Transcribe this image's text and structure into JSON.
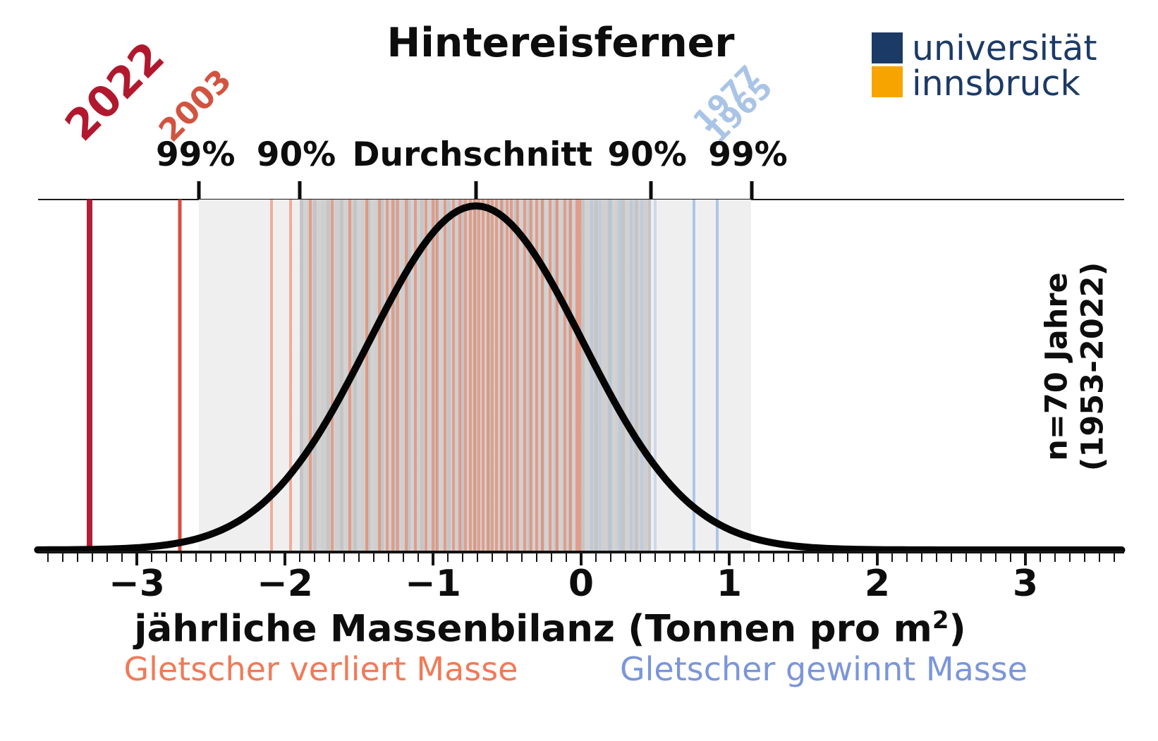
{
  "title": "Hintereisferner",
  "logo": {
    "line1": "universität",
    "line2": "innsbruck",
    "navy_color": "#1c3a66",
    "orange_color": "#f7a400"
  },
  "top_labels": [
    "99%",
    "90%",
    "Durchschnitt",
    "90%",
    "99%"
  ],
  "xlabel": {
    "main": "jährliche Massenbilanz (Tonnen pro m",
    "sup": "2",
    "end": ")"
  },
  "captions": {
    "loss": "Gletscher verliert Masse",
    "gain": "Gletscher gewinnt Masse",
    "loss_color": "#f07a58",
    "gain_color": "#7b96d8"
  },
  "side_note": {
    "line1": "n=70 Jahre",
    "line2": "(1953-2022)"
  },
  "year_highlights": [
    {
      "year": "2022",
      "value": -3.32,
      "line_color": "#ae1930",
      "label_color": "#b1182e"
    },
    {
      "year": "2003",
      "value": -2.71,
      "line_color": "#d7473a",
      "label_color": "#d15340"
    },
    {
      "year": "1977",
      "value": 0.76,
      "line_color": "#a9c4e6",
      "label_color": "#a9c4e6"
    },
    {
      "year": "1965",
      "value": 0.92,
      "line_color": "#a9c4e6",
      "label_color": "#a9c4e6"
    }
  ],
  "chart_data": {
    "type": "line",
    "subtype": "probability-density",
    "title": "Hintereisferner",
    "xlabel": "jährliche Massenbilanz (Tonnen pro m2)",
    "ylabel": "",
    "x_ticks": [
      -3,
      -2,
      -1,
      0,
      1,
      2,
      3
    ],
    "xlim": [
      -3.67,
      3.67
    ],
    "minor_tick_step": 0.1,
    "grid": false,
    "legend": false,
    "distribution": {
      "shape": "normal",
      "mean": -0.71,
      "std": 0.72,
      "n": 70,
      "period": "1953-2022"
    },
    "interval_90": [
      -1.9,
      0.47
    ],
    "interval_99": [
      -2.58,
      1.15
    ],
    "mass_loss_year_values": [
      -2.09,
      -1.96,
      -1.83,
      -1.68,
      -1.56,
      -1.45,
      -1.36,
      -1.31,
      -1.27,
      -1.24,
      -1.18,
      -1.12,
      -1.05,
      -1.0,
      -0.97,
      -0.92,
      -0.86,
      -0.82,
      -0.78,
      -0.75,
      -0.72,
      -0.69,
      -0.66,
      -0.63,
      -0.6,
      -0.57,
      -0.54,
      -0.5,
      -0.47,
      -0.43,
      -0.38,
      -0.34,
      -0.3,
      -0.26,
      -0.21,
      -0.16,
      -0.11,
      -0.07,
      -0.03,
      -0.01
    ],
    "mass_gain_year_values": [
      0.07,
      0.13,
      0.2,
      0.26,
      0.34,
      0.41,
      0.5
    ],
    "highlighted_years": [
      {
        "year": "2022",
        "value": -3.32
      },
      {
        "year": "2003",
        "value": -2.71
      },
      {
        "year": "1977",
        "value": 0.76
      },
      {
        "year": "1965",
        "value": 0.92
      }
    ],
    "line_color": "#000000",
    "loss_line_color": "#ef6c42",
    "gain_line_color": "#a9c4e6"
  }
}
